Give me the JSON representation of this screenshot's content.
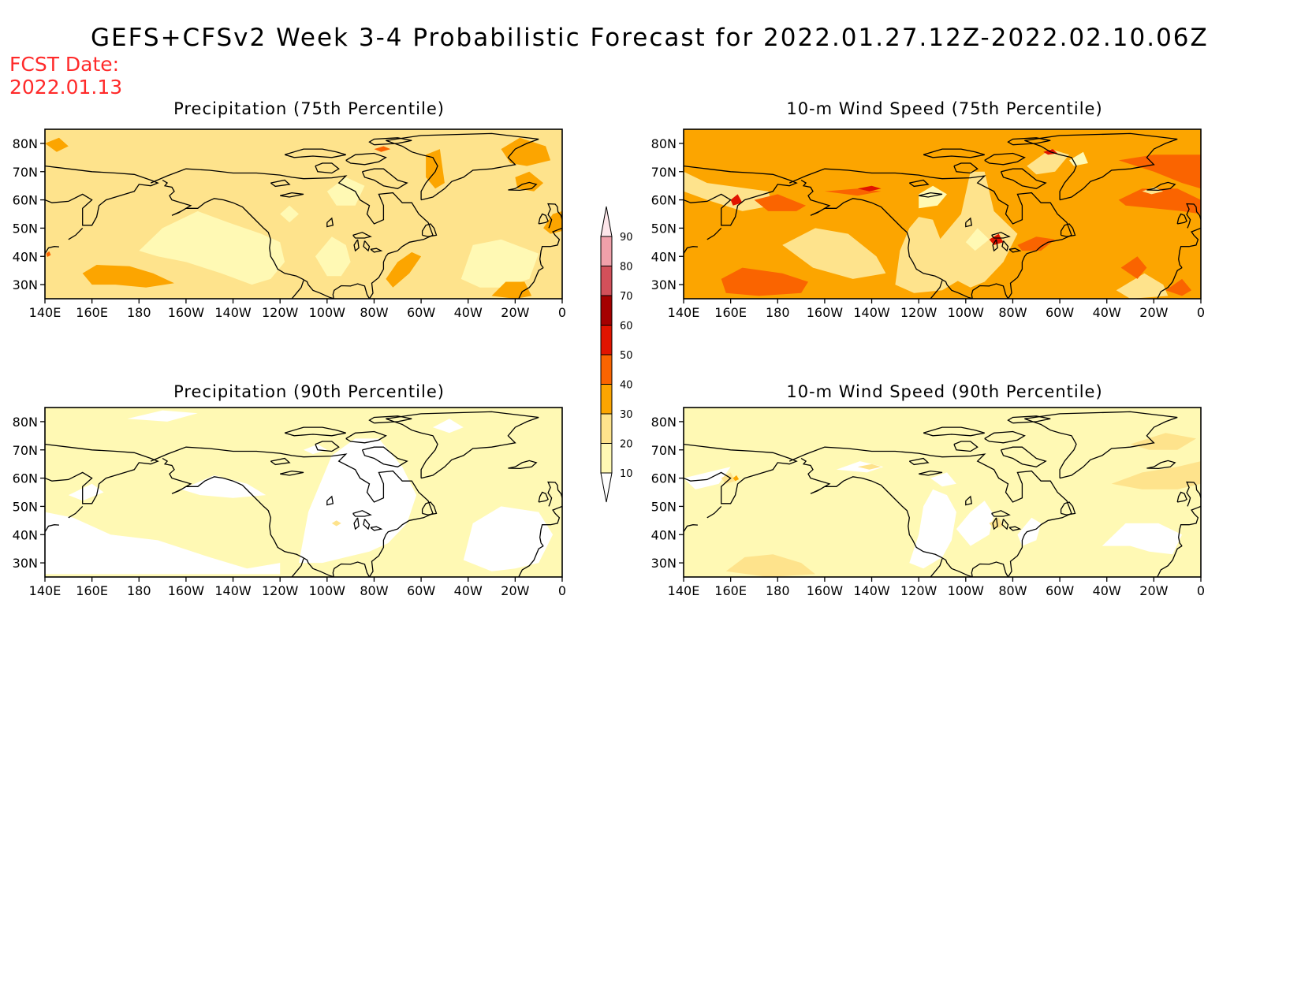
{
  "header": {
    "title": "GEFS+CFSv2 Week 3-4 Probabilistic Forecast for 2022.01.27.12Z-2022.02.10.06Z",
    "fcst_label": "FCST Date:",
    "fcst_date": "2022.01.13"
  },
  "panels": [
    {
      "title": "Precipitation (75th Percentile)",
      "field": "precip75"
    },
    {
      "title": "10-m Wind Speed (75th Percentile)",
      "field": "wind75"
    },
    {
      "title": "Precipitation (90th Percentile)",
      "field": "precip90"
    },
    {
      "title": "10-m Wind Speed (90th Percentile)",
      "field": "wind90"
    }
  ],
  "axes": {
    "lon_labels": [
      "140E",
      "160E",
      "180",
      "160W",
      "140W",
      "120W",
      "100W",
      "80W",
      "60W",
      "40W",
      "20W",
      "0"
    ],
    "lat_labels": [
      "80N",
      "70N",
      "60N",
      "50N",
      "40N",
      "30N"
    ],
    "lon_range": [
      "140E",
      "0"
    ],
    "lat_range": [
      "25N",
      "85N"
    ]
  },
  "colorbar": {
    "levels": [
      "10",
      "20",
      "30",
      "40",
      "50",
      "60",
      "70",
      "80",
      "90"
    ],
    "colors": [
      "#fff9b4",
      "#fee38c",
      "#fca500",
      "#fa6400",
      "#e11400",
      "#a50000",
      "#d2505a",
      "#f0a0aa",
      "#fde6ea"
    ]
  },
  "colors": {
    "fcst_red": "#ff2a2a",
    "coastline": "#000000"
  }
}
